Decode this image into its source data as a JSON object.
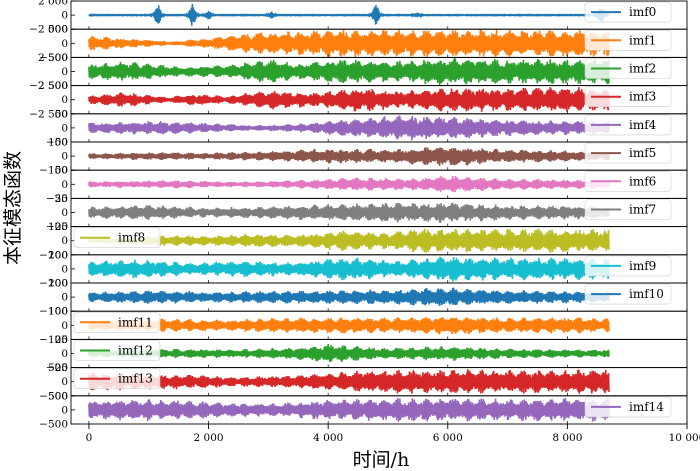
{
  "chart_data": {
    "type": "line",
    "title": "",
    "xlabel": "时间/h",
    "ylabel": "本征模态函数",
    "xlim": [
      -300,
      10000
    ],
    "x_ticks": [
      0,
      2000,
      4000,
      6000,
      8000,
      10000
    ],
    "x_tick_labels": [
      "0",
      "2 000",
      "4 000",
      "6 000",
      "8 000",
      "10 000"
    ],
    "x_data_range": [
      0,
      8700
    ],
    "grid": false,
    "series": [
      {
        "name": "imf0",
        "color": "#1f77b4",
        "ylim": [
          -2000,
          2000
        ],
        "y_ticks": [
          2000,
          0,
          -2000
        ],
        "y_tick_labels": [
          "2 000",
          "0",
          "−2 000"
        ],
        "base_amplitude": 60,
        "amplitude": 1500,
        "legend_pos": "right",
        "bursts": [
          [
            1150,
            1500
          ],
          [
            1730,
            1550
          ],
          [
            2000,
            600
          ],
          [
            3050,
            500
          ],
          [
            4800,
            1450
          ],
          [
            5480,
            300
          ],
          [
            8560,
            1200
          ]
        ]
      },
      {
        "name": "imf1",
        "color": "#ff7f0e",
        "ylim": [
          -500,
          500
        ],
        "y_ticks": [
          500,
          0,
          -500
        ],
        "y_tick_labels": [
          "500",
          "0",
          "−500"
        ],
        "base_amplitude": 300,
        "amplitude": 500,
        "legend_pos": "right",
        "envelope": [
          [
            0,
            0.55
          ],
          [
            700,
            0.35
          ],
          [
            1400,
            0.15
          ],
          [
            1900,
            0.35
          ],
          [
            2800,
            0.8
          ],
          [
            4200,
            1.0
          ],
          [
            6000,
            1.0
          ],
          [
            7600,
            1.0
          ],
          [
            8700,
            0.95
          ]
        ]
      },
      {
        "name": "imf2",
        "color": "#2ca02c",
        "ylim": [
          -2500,
          2500
        ],
        "y_ticks": [
          2500,
          0,
          -2500
        ],
        "y_tick_labels": [
          "2 500",
          "0",
          "−2 500"
        ],
        "base_amplitude": 1500,
        "amplitude": 2500,
        "legend_pos": "right",
        "envelope": [
          [
            0,
            0.5
          ],
          [
            600,
            0.75
          ],
          [
            1500,
            0.35
          ],
          [
            2300,
            0.45
          ],
          [
            3000,
            0.9
          ],
          [
            3500,
            0.55
          ],
          [
            4100,
            0.9
          ],
          [
            5000,
            0.75
          ],
          [
            6000,
            1.0
          ],
          [
            7000,
            0.9
          ],
          [
            8700,
            0.95
          ]
        ]
      },
      {
        "name": "imf3",
        "color": "#d62728",
        "ylim": [
          -2500,
          2500
        ],
        "y_ticks": [
          2500,
          0,
          -2500
        ],
        "y_tick_labels": [
          "2 500",
          "0",
          "−2 500"
        ],
        "base_amplitude": 1200,
        "amplitude": 2500,
        "legend_pos": "right",
        "envelope": [
          [
            0,
            0.3
          ],
          [
            600,
            0.55
          ],
          [
            1300,
            0.2
          ],
          [
            1800,
            0.45
          ],
          [
            2300,
            0.25
          ],
          [
            3000,
            0.7
          ],
          [
            3800,
            0.5
          ],
          [
            4500,
            0.95
          ],
          [
            5200,
            0.6
          ],
          [
            6000,
            0.9
          ],
          [
            7000,
            0.85
          ],
          [
            8000,
            0.95
          ],
          [
            8700,
            0.8
          ]
        ]
      },
      {
        "name": "imf4",
        "color": "#9467bd",
        "ylim": [
          -50,
          50
        ],
        "y_ticks": [
          50,
          0,
          -50
        ],
        "y_tick_labels": [
          "50",
          "0",
          "−50"
        ],
        "base_amplitude": 25,
        "amplitude": 50,
        "legend_pos": "right",
        "envelope": [
          [
            0,
            0.4
          ],
          [
            1200,
            0.5
          ],
          [
            2000,
            0.35
          ],
          [
            2800,
            0.2
          ],
          [
            3500,
            0.3
          ],
          [
            4500,
            0.7
          ],
          [
            5200,
            0.9
          ],
          [
            6000,
            0.85
          ],
          [
            7000,
            0.6
          ],
          [
            8000,
            0.5
          ],
          [
            8700,
            0.45
          ]
        ]
      },
      {
        "name": "imf5",
        "color": "#8c564b",
        "ylim": [
          -100,
          100
        ],
        "y_ticks": [
          100,
          0,
          -100
        ],
        "y_tick_labels": [
          "100",
          "0",
          "−100"
        ],
        "base_amplitude": 60,
        "amplitude": 100,
        "legend_pos": "right",
        "envelope": [
          [
            0,
            0.2
          ],
          [
            1000,
            0.3
          ],
          [
            2000,
            0.25
          ],
          [
            3000,
            0.35
          ],
          [
            4000,
            0.55
          ],
          [
            5000,
            0.5
          ],
          [
            6000,
            0.75
          ],
          [
            7000,
            0.5
          ],
          [
            8000,
            0.4
          ],
          [
            8700,
            0.3
          ]
        ]
      },
      {
        "name": "imf6",
        "color": "#e377c2",
        "ylim": [
          -50,
          50
        ],
        "y_ticks": [
          50,
          0,
          -50
        ],
        "y_tick_labels": [
          "50",
          "0",
          "−50"
        ],
        "base_amplitude": 25,
        "amplitude": 50,
        "legend_pos": "right",
        "envelope": [
          [
            0,
            0.25
          ],
          [
            1500,
            0.3
          ],
          [
            2500,
            0.2
          ],
          [
            3500,
            0.3
          ],
          [
            4500,
            0.5
          ],
          [
            5500,
            0.45
          ],
          [
            6000,
            0.65
          ],
          [
            7000,
            0.4
          ],
          [
            8000,
            0.35
          ],
          [
            8700,
            0.3
          ]
        ]
      },
      {
        "name": "imf7",
        "color": "#7f7f7f",
        "ylim": [
          -25,
          25
        ],
        "y_ticks": [
          25,
          0,
          -25
        ],
        "y_tick_labels": [
          "25",
          "0",
          "−25"
        ],
        "base_amplitude": 12,
        "amplitude": 25,
        "legend_pos": "right",
        "envelope": [
          [
            0,
            0.4
          ],
          [
            1000,
            0.55
          ],
          [
            2000,
            0.35
          ],
          [
            3000,
            0.45
          ],
          [
            4000,
            0.6
          ],
          [
            5000,
            0.7
          ],
          [
            6000,
            0.75
          ],
          [
            7000,
            0.55
          ],
          [
            8000,
            0.5
          ],
          [
            8700,
            0.45
          ]
        ]
      },
      {
        "name": "imf8",
        "color": "#bcbd22",
        "ylim": [
          -100,
          100
        ],
        "y_ticks": [
          100,
          0,
          -100
        ],
        "y_tick_labels": [
          "100",
          "0",
          "−100"
        ],
        "base_amplitude": 60,
        "amplitude": 100,
        "legend_pos": "left",
        "envelope": [
          [
            0,
            0.15
          ],
          [
            1200,
            0.4
          ],
          [
            2000,
            0.35
          ],
          [
            2800,
            0.5
          ],
          [
            3500,
            0.45
          ],
          [
            4200,
            0.75
          ],
          [
            5000,
            0.6
          ],
          [
            5500,
            0.9
          ],
          [
            6500,
            0.85
          ],
          [
            7500,
            0.9
          ],
          [
            8700,
            0.8
          ]
        ]
      },
      {
        "name": "imf9",
        "color": "#17becf",
        "ylim": [
          -200,
          200
        ],
        "y_ticks": [
          200,
          0,
          -200
        ],
        "y_tick_labels": [
          "200",
          "0",
          "−200"
        ],
        "base_amplitude": 120,
        "amplitude": 200,
        "legend_pos": "right",
        "envelope": [
          [
            0,
            0.55
          ],
          [
            900,
            0.7
          ],
          [
            1700,
            0.45
          ],
          [
            2500,
            0.6
          ],
          [
            3400,
            0.5
          ],
          [
            4300,
            0.85
          ],
          [
            5200,
            0.6
          ],
          [
            6000,
            0.95
          ],
          [
            7000,
            0.85
          ],
          [
            8000,
            0.8
          ],
          [
            8700,
            0.75
          ]
        ]
      },
      {
        "name": "imf10",
        "color": "#1f77b4",
        "ylim": [
          -100,
          100
        ],
        "y_ticks": [
          100,
          0,
          -100
        ],
        "y_tick_labels": [
          "100",
          "0",
          "−100"
        ],
        "base_amplitude": 60,
        "amplitude": 100,
        "legend_pos": "right",
        "envelope": [
          [
            0,
            0.35
          ],
          [
            1000,
            0.5
          ],
          [
            2000,
            0.4
          ],
          [
            3000,
            0.45
          ],
          [
            4000,
            0.5
          ],
          [
            5000,
            0.55
          ],
          [
            6000,
            0.7
          ],
          [
            7000,
            0.5
          ],
          [
            8000,
            0.45
          ],
          [
            8700,
            0.4
          ]
        ]
      },
      {
        "name": "imf11",
        "color": "#ff7f0e",
        "ylim": [
          -100,
          100
        ],
        "y_ticks": [
          100,
          0,
          -100
        ],
        "y_tick_labels": [
          "100",
          "0",
          "−100"
        ],
        "base_amplitude": 60,
        "amplitude": 100,
        "legend_pos": "left",
        "envelope": [
          [
            0,
            0.35
          ],
          [
            1200,
            0.5
          ],
          [
            2200,
            0.4
          ],
          [
            3200,
            0.55
          ],
          [
            4200,
            0.6
          ],
          [
            5000,
            0.55
          ],
          [
            6000,
            0.7
          ],
          [
            7000,
            0.55
          ],
          [
            8000,
            0.6
          ],
          [
            8700,
            0.5
          ]
        ]
      },
      {
        "name": "imf12",
        "color": "#2ca02c",
        "ylim": [
          -25,
          25
        ],
        "y_ticks": [
          25,
          0,
          -25
        ],
        "y_tick_labels": [
          "25",
          "0",
          "−25"
        ],
        "base_amplitude": 12,
        "amplitude": 25,
        "legend_pos": "left",
        "envelope": [
          [
            0,
            0.25
          ],
          [
            1500,
            0.35
          ],
          [
            2500,
            0.3
          ],
          [
            3500,
            0.45
          ],
          [
            4000,
            0.7
          ],
          [
            5000,
            0.4
          ],
          [
            6000,
            0.55
          ],
          [
            7000,
            0.35
          ],
          [
            8000,
            0.3
          ],
          [
            8700,
            0.3
          ]
        ]
      },
      {
        "name": "imf13",
        "color": "#d62728",
        "ylim": [
          -500,
          500
        ],
        "y_ticks": [
          500,
          0,
          -500
        ],
        "y_tick_labels": [
          "500",
          "0",
          "−500"
        ],
        "base_amplitude": 300,
        "amplitude": 500,
        "legend_pos": "left",
        "envelope": [
          [
            0,
            0.65
          ],
          [
            1500,
            0.55
          ],
          [
            2500,
            0.35
          ],
          [
            3500,
            0.5
          ],
          [
            4500,
            0.8
          ],
          [
            6000,
            0.9
          ],
          [
            7000,
            0.85
          ],
          [
            8700,
            0.9
          ]
        ]
      },
      {
        "name": "imf14",
        "color": "#9467bd",
        "ylim": [
          -500,
          500
        ],
        "y_ticks": [
          500,
          0,
          -500
        ],
        "y_tick_labels": [
          "500",
          "0",
          "−500"
        ],
        "base_amplitude": 300,
        "amplitude": 500,
        "legend_pos": "right",
        "envelope": [
          [
            0,
            0.7
          ],
          [
            1000,
            0.8
          ],
          [
            2000,
            0.6
          ],
          [
            3000,
            0.45
          ],
          [
            4000,
            0.75
          ],
          [
            5000,
            0.85
          ],
          [
            6000,
            0.85
          ],
          [
            7000,
            0.8
          ],
          [
            8000,
            0.85
          ],
          [
            8700,
            0.85
          ]
        ]
      }
    ]
  }
}
